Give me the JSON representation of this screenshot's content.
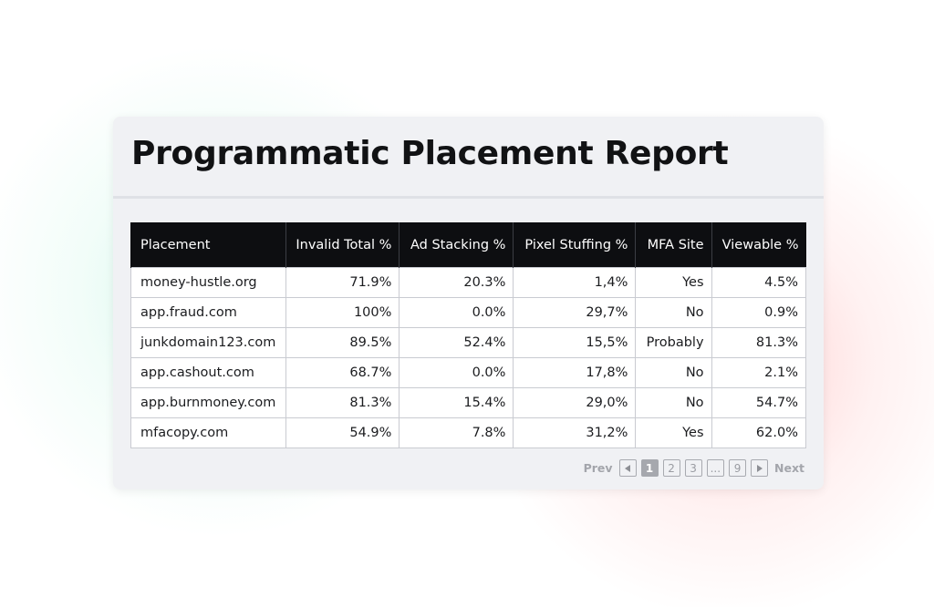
{
  "report": {
    "title": "Programmatic Placement Report"
  },
  "table": {
    "headers": {
      "placement": "Placement",
      "invalid_total": "Invalid Total %",
      "ad_stacking": "Ad Stacking %",
      "pixel_stuffing": "Pixel Stuffing %",
      "mfa_site": "MFA Site",
      "viewable": "Viewable %"
    },
    "rows": [
      {
        "placement": "money-hustle.org",
        "invalid_total": "71.9%",
        "ad_stacking": "20.3%",
        "pixel_stuffing": "1,4%",
        "mfa_site": "Yes",
        "viewable": "4.5%"
      },
      {
        "placement": "app.fraud.com",
        "invalid_total": "100%",
        "ad_stacking": "0.0%",
        "pixel_stuffing": "29,7%",
        "mfa_site": "No",
        "viewable": "0.9%"
      },
      {
        "placement": " junkdomain123.com",
        "invalid_total": "89.5%",
        "ad_stacking": "52.4%",
        "pixel_stuffing": "15,5%",
        "mfa_site": "Probably",
        "viewable": "81.3%"
      },
      {
        "placement": "app.cashout.com",
        "invalid_total": "68.7%",
        "ad_stacking": "0.0%",
        "pixel_stuffing": "17,8%",
        "mfa_site": "No",
        "viewable": "2.1%"
      },
      {
        "placement": "app.burnmoney.com",
        "invalid_total": "81.3%",
        "ad_stacking": "15.4%",
        "pixel_stuffing": "29,0%",
        "mfa_site": "No",
        "viewable": "54.7%"
      },
      {
        "placement": "mfacopy.com",
        "invalid_total": "54.9%",
        "ad_stacking": "7.8%",
        "pixel_stuffing": "31,2%",
        "mfa_site": "Yes",
        "viewable": "62.0%"
      }
    ]
  },
  "pagination": {
    "prev_label": "Prev",
    "next_label": "Next",
    "pages": [
      "1",
      "2",
      "3",
      "...",
      "9"
    ],
    "current_page": "1",
    "prev_icon": "triangle-left-icon",
    "next_icon": "triangle-right-icon"
  },
  "colors": {
    "header_bg": "#0d0e11",
    "card_bg": "#f0f1f4",
    "glow_left": "#78ebc3",
    "glow_right": "#ff7878"
  }
}
